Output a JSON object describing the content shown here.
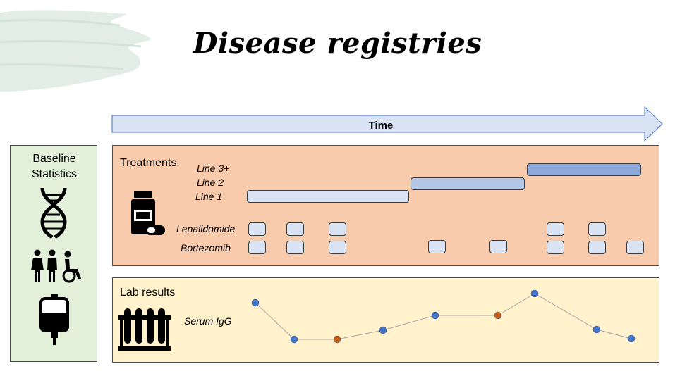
{
  "title": "Disease registries",
  "time_label": "Time",
  "baseline": {
    "title": "Baseline Statistics",
    "icons": [
      "dna-icon",
      "family-disability-icon",
      "iv-bag-icon"
    ]
  },
  "treatments": {
    "title": "Treatments",
    "icon": "pill-bottle-icon",
    "lines": [
      {
        "label": "Line 3+",
        "fill": "#8eaadb"
      },
      {
        "label": "Line 2",
        "fill": "#b4c7e7"
      },
      {
        "label": "Line 1",
        "fill": "#dae3f3"
      }
    ],
    "drugs": [
      {
        "label": "Lenalidomide"
      },
      {
        "label": "Bortezomib"
      }
    ]
  },
  "lab": {
    "title": "Lab results",
    "icon": "test-tubes-icon",
    "series_label": "Serum IgG",
    "point_colors": [
      "#4472c4",
      "#4472c4",
      "#c55a11",
      "#4472c4",
      "#4472c4",
      "#c55a11",
      "#4472c4",
      "#4472c4",
      "#4472c4"
    ],
    "line_color": "#a6a6a6"
  }
}
